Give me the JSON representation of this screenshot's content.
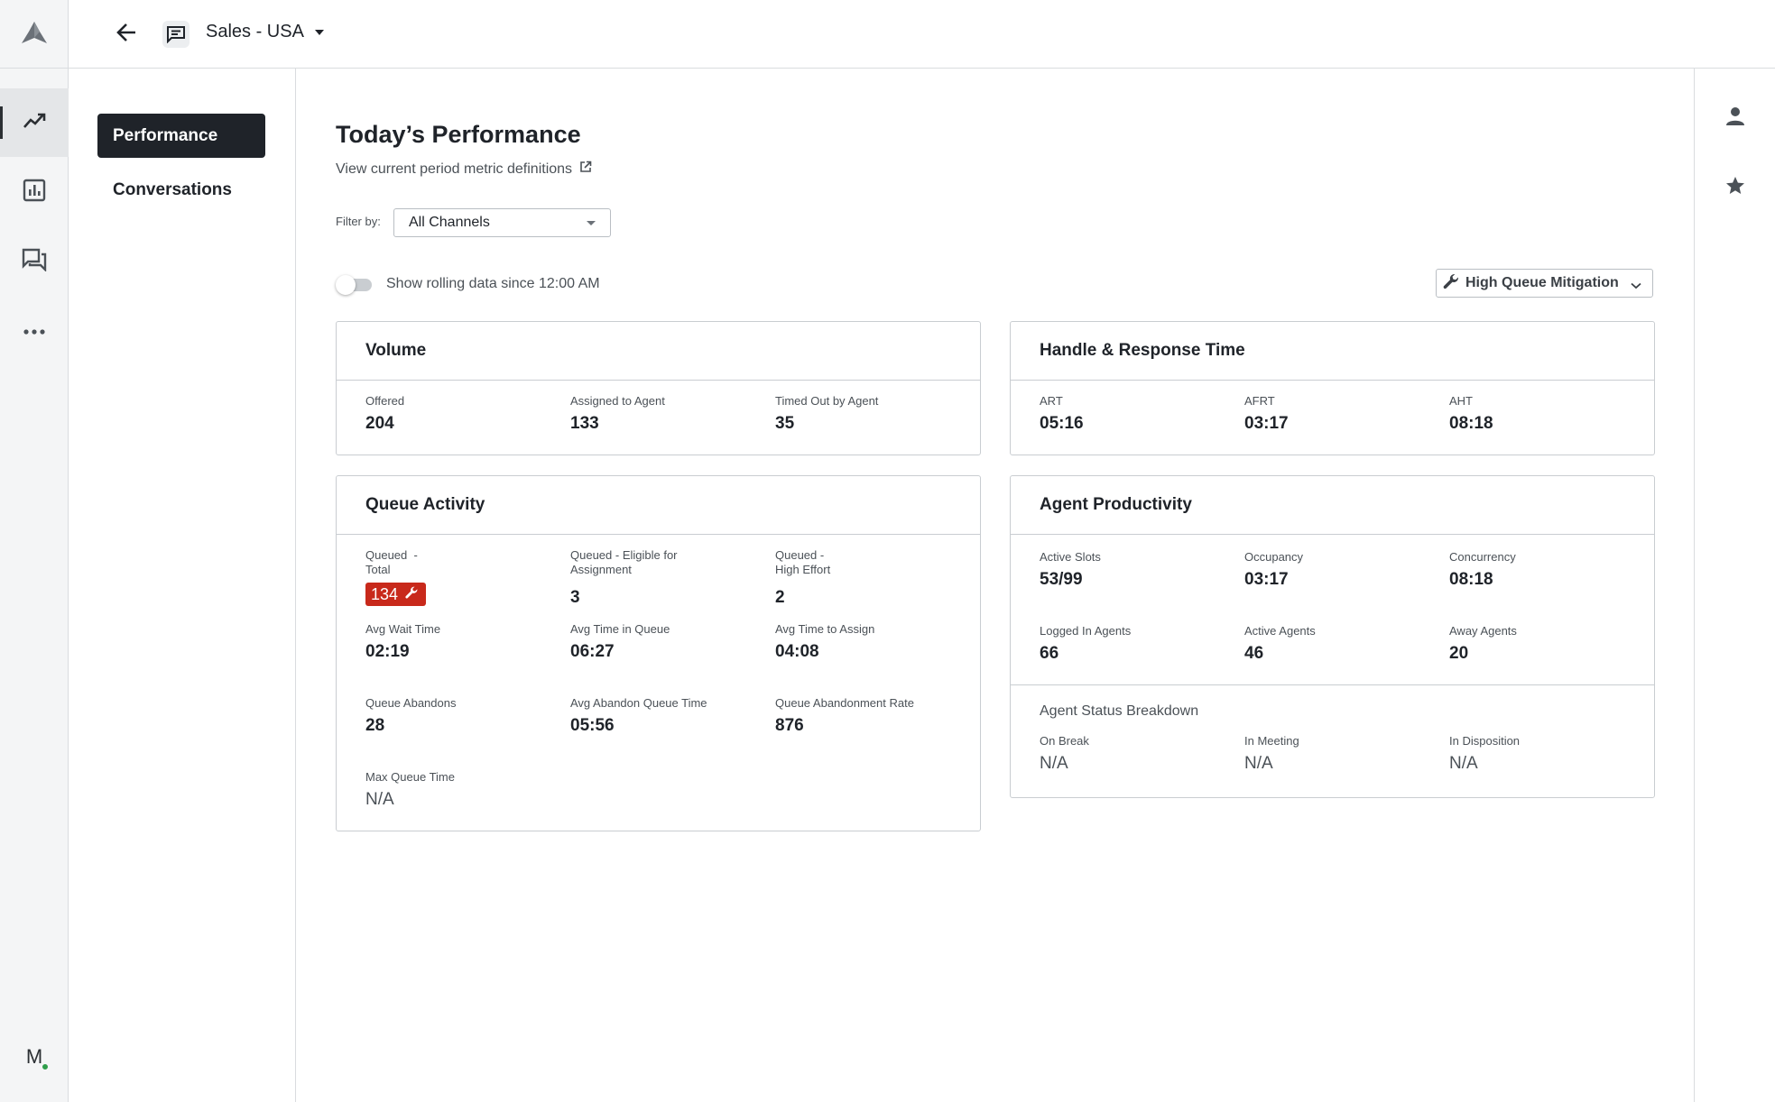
{
  "header": {
    "queue_name": "Sales - USA"
  },
  "rail": {
    "icons": [
      "logo-icon",
      "performance-trend-icon",
      "reports-chart-icon",
      "conversations-icon",
      "more-icon"
    ],
    "user_initial": "M"
  },
  "sidenav": {
    "items": [
      {
        "label": "Performance",
        "active": true
      },
      {
        "label": "Conversations",
        "active": false
      }
    ]
  },
  "utility_rail": {
    "icons": [
      "person-icon",
      "star-icon"
    ]
  },
  "main": {
    "title": "Today’s Performance",
    "definitions_link": "View current period metric definitions",
    "filter_label": "Filter by:",
    "filter_value": "All Channels",
    "toggle_label": "Show rolling data since 12:00 AM",
    "toggle_on": false,
    "mitigation_button": "High Queue Mitigation"
  },
  "volume": {
    "title": "Volume",
    "metrics": [
      {
        "label": "Offered",
        "value": "204"
      },
      {
        "label": "Assigned to Agent",
        "value": "133"
      },
      {
        "label": "Timed Out by Agent",
        "value": "35"
      }
    ]
  },
  "handle": {
    "title": "Handle & Response Time",
    "metrics": [
      {
        "label": "ART",
        "value": "05:16"
      },
      {
        "label": "AFRT",
        "value": "03:17"
      },
      {
        "label": "AHT",
        "value": "08:18"
      }
    ]
  },
  "queue": {
    "title": "Queue Activity",
    "total_label_1": "Queued  -",
    "total_label_2": "Total",
    "total_value": "134",
    "eligible_label_1": "Queued - Eligible for",
    "eligible_label_2": "Assignment",
    "eligible_value": "3",
    "high_label_1": "Queued -",
    "high_label_2": "High Effort",
    "high_value": "2",
    "metrics": [
      {
        "label": "Avg Wait Time",
        "value": "02:19"
      },
      {
        "label": "Avg Time in Queue",
        "value": "06:27"
      },
      {
        "label": "Avg Time to Assign",
        "value": "04:08"
      },
      {
        "label": "Queue Abandons",
        "value": "28"
      },
      {
        "label": "Avg Abandon Queue Time",
        "value": "05:56"
      },
      {
        "label": "Queue Abandonment Rate",
        "value": "876"
      },
      {
        "label": "Max Queue Time",
        "value": "N/A"
      }
    ],
    "alert_color": "#c8291b"
  },
  "productivity": {
    "title": "Agent Productivity",
    "metrics": [
      {
        "label": "Active Slots",
        "value": "53/99"
      },
      {
        "label": "Occupancy",
        "value": "03:17"
      },
      {
        "label": "Concurrency",
        "value": "08:18"
      },
      {
        "label": "Logged In Agents",
        "value": "66"
      },
      {
        "label": "Active Agents",
        "value": "46"
      },
      {
        "label": "Away Agents",
        "value": "20"
      }
    ],
    "breakdown_title": "Agent Status Breakdown",
    "breakdown": [
      {
        "label": "On Break",
        "value": "N/A"
      },
      {
        "label": "In Meeting",
        "value": "N/A"
      },
      {
        "label": "In Disposition",
        "value": "N/A"
      }
    ]
  }
}
